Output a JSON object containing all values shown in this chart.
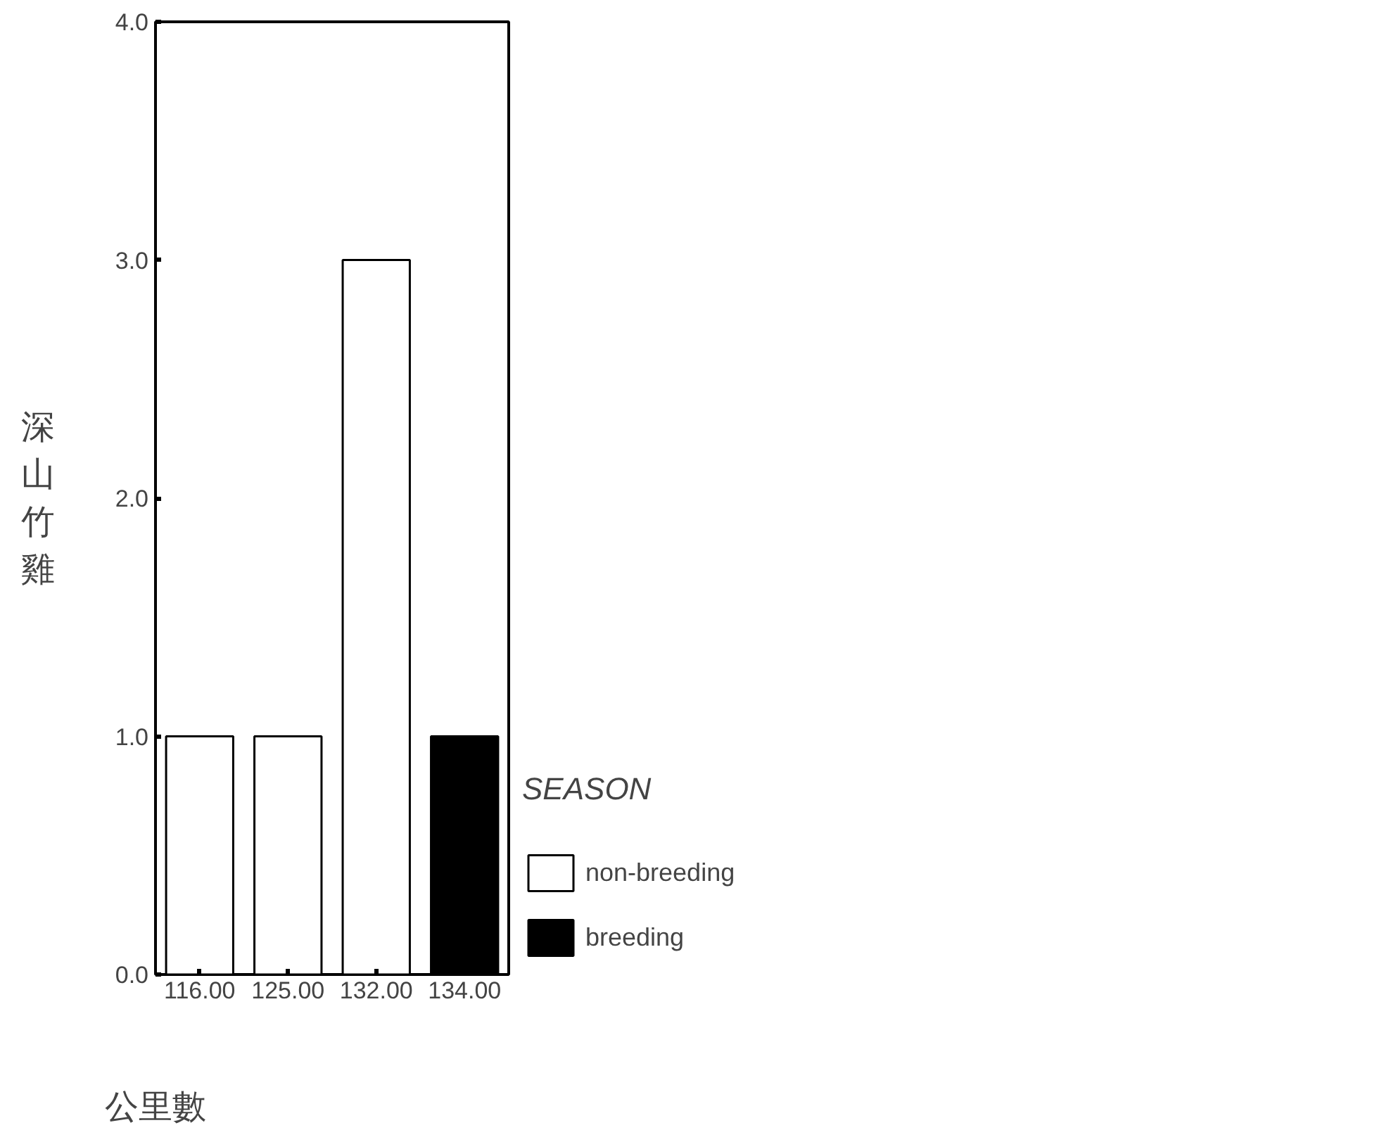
{
  "chart_data": {
    "type": "bar",
    "stacked": true,
    "xlabel": "公里數",
    "ylabel": "深山竹雞",
    "legend_title": "SEASON",
    "legend": "right",
    "grid": false,
    "categories": [
      "116.00",
      "125.00",
      "132.00",
      "134.00"
    ],
    "series": [
      {
        "name": "non-breeding",
        "color": "#ffffff",
        "values": [
          1,
          1,
          3,
          null
        ]
      },
      {
        "name": "breeding",
        "color": "#000000",
        "values": [
          null,
          null,
          null,
          1
        ]
      }
    ],
    "ylim": [
      0,
      4
    ],
    "yticks": [
      {
        "value": 0,
        "label": "0.0"
      },
      {
        "value": 1,
        "label": "1.0"
      },
      {
        "value": 2,
        "label": "2.0"
      },
      {
        "value": 3,
        "label": "3.0"
      },
      {
        "value": 4,
        "label": "4.0"
      }
    ]
  }
}
